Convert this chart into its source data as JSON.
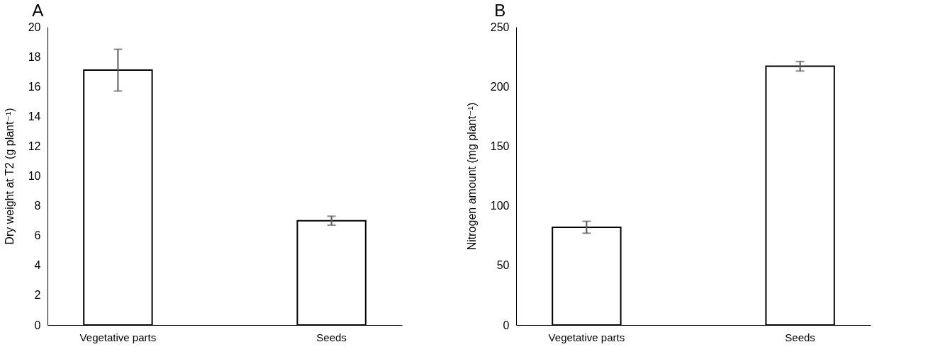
{
  "chart_data": [
    {
      "type": "bar",
      "title": "A",
      "ylabel": "Dry weight at T2 (g plant⁻¹)",
      "categories": [
        "Vegetative parts",
        "Seeds"
      ],
      "values": [
        17.1,
        7.0
      ],
      "errors": [
        1.4,
        0.3
      ],
      "color": "#ffffff",
      "ylim": [
        0,
        20
      ],
      "yticks": [
        0,
        2,
        4,
        6,
        8,
        10,
        12,
        14,
        16,
        18,
        20
      ],
      "grid": false
    },
    {
      "type": "bar",
      "title": "B",
      "ylabel": "Nitrogen amount (mg plant⁻¹)",
      "categories": [
        "Vegetative parts",
        "Seeds"
      ],
      "values": [
        82,
        217
      ],
      "errors": [
        5,
        4
      ],
      "color": "#ffffff",
      "ylim": [
        0,
        250
      ],
      "yticks": [
        0,
        50,
        100,
        150,
        200,
        250
      ],
      "grid": false
    }
  ]
}
